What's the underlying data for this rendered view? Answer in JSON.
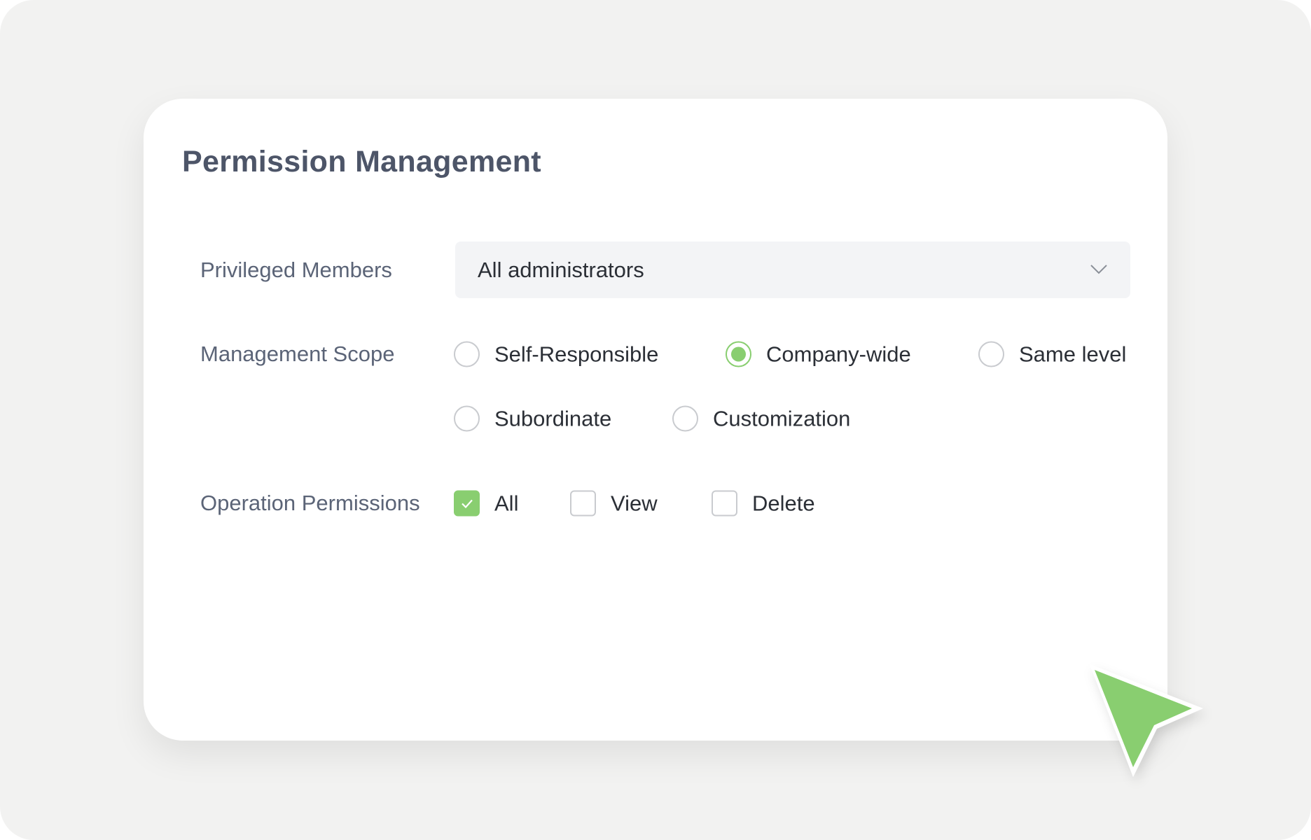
{
  "title": "Permission Management",
  "privileged_members": {
    "label": "Privileged Members",
    "value": "All administrators"
  },
  "management_scope": {
    "label": "Management Scope",
    "options": [
      {
        "label": "Self-Responsible",
        "selected": false
      },
      {
        "label": "Company-wide",
        "selected": true
      },
      {
        "label": "Same level",
        "selected": false
      },
      {
        "label": "Subordinate",
        "selected": false
      },
      {
        "label": "Customization",
        "selected": false
      }
    ]
  },
  "operation_permissions": {
    "label": "Operation Permissions",
    "options": [
      {
        "label": "All",
        "checked": true
      },
      {
        "label": "View",
        "checked": false
      },
      {
        "label": "Delete",
        "checked": false
      }
    ]
  },
  "colors": {
    "accent": "#89ce70",
    "title": "#4d5568",
    "background": "#f2f2f1"
  }
}
